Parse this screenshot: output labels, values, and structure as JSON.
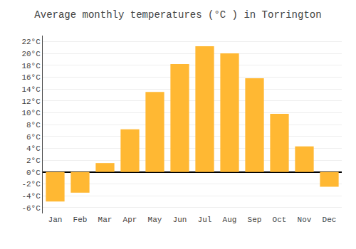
{
  "chart_data": {
    "type": "bar",
    "title": "Average monthly temperatures (°C ) in Torrington",
    "categories": [
      "Jan",
      "Feb",
      "Mar",
      "Apr",
      "May",
      "Jun",
      "Jul",
      "Aug",
      "Sep",
      "Oct",
      "Nov",
      "Dec"
    ],
    "values": [
      -5.0,
      -3.5,
      1.5,
      7.2,
      13.5,
      18.2,
      21.2,
      20.0,
      15.8,
      9.8,
      4.3,
      -2.5
    ],
    "color": "#FFB833",
    "ylim": [
      -7,
      23
    ],
    "yticks": [
      {
        "value": -6,
        "label": "-6°C"
      },
      {
        "value": -4,
        "label": "-4°C"
      },
      {
        "value": -2,
        "label": "-2°C"
      },
      {
        "value": 0,
        "label": "0°C"
      },
      {
        "value": 2,
        "label": "2°C"
      },
      {
        "value": 4,
        "label": "4°C"
      },
      {
        "value": 6,
        "label": "6°C"
      },
      {
        "value": 8,
        "label": "8°C"
      },
      {
        "value": 10,
        "label": "10°C"
      },
      {
        "value": 12,
        "label": "12°C"
      },
      {
        "value": 14,
        "label": "14°C"
      },
      {
        "value": 16,
        "label": "16°C"
      },
      {
        "value": 18,
        "label": "18°C"
      },
      {
        "value": 20,
        "label": "20°C"
      },
      {
        "value": 22,
        "label": "22°C"
      }
    ],
    "grid": true
  }
}
